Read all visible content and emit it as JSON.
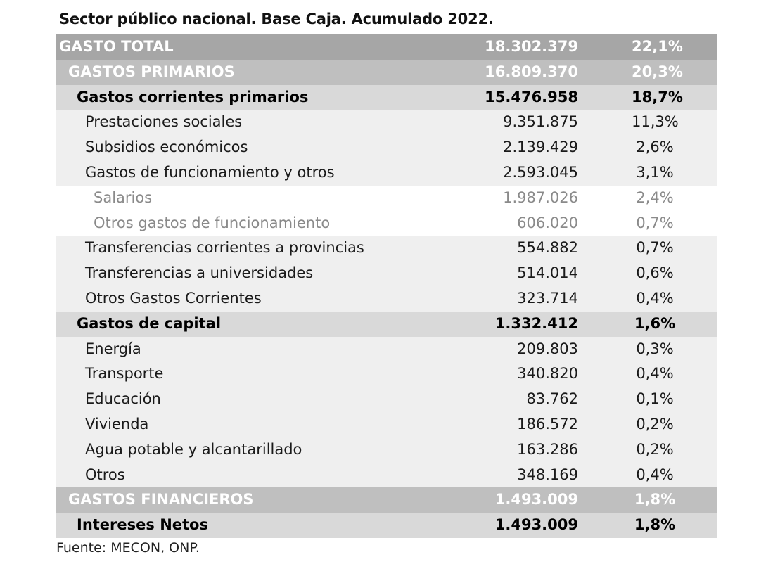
{
  "title": "Sector público nacional. Base Caja. Acumulado 2022.",
  "rows": [
    {
      "label": "GASTO TOTAL",
      "value": "18.302.379",
      "pct": "22,1%",
      "level": 0
    },
    {
      "label": "GASTOS PRIMARIOS",
      "value": "16.809.370",
      "pct": "20,3%",
      "level": 1
    },
    {
      "label": "Gastos corrientes primarios",
      "value": "15.476.958",
      "pct": "18,7%",
      "level": 2
    },
    {
      "label": "Prestaciones sociales",
      "value": "9.351.875",
      "pct": "11,3%",
      "level": 3
    },
    {
      "label": "Subsidios económicos",
      "value": "2.139.429",
      "pct": "2,6%",
      "level": 3
    },
    {
      "label": "Gastos de funcionamiento y otros",
      "value": "2.593.045",
      "pct": "3,1%",
      "level": 3
    },
    {
      "label": "Salarios",
      "value": "1.987.026",
      "pct": "2,4%",
      "level": 4
    },
    {
      "label": "Otros gastos de funcionamiento",
      "value": "606.020",
      "pct": "0,7%",
      "level": 4
    },
    {
      "label": "Transferencias corrientes a provincias",
      "value": "554.882",
      "pct": "0,7%",
      "level": 3
    },
    {
      "label": "Transferencias a universidades",
      "value": "514.014",
      "pct": "0,6%",
      "level": 3
    },
    {
      "label": "Otros Gastos Corrientes",
      "value": "323.714",
      "pct": "0,4%",
      "level": 3
    },
    {
      "label": "Gastos de capital",
      "value": "1.332.412",
      "pct": "1,6%",
      "level": 2
    },
    {
      "label": "Energía",
      "value": "209.803",
      "pct": "0,3%",
      "level": 3
    },
    {
      "label": "Transporte",
      "value": "340.820",
      "pct": "0,4%",
      "level": 3
    },
    {
      "label": "Educación",
      "value": "83.762",
      "pct": "0,1%",
      "level": 3
    },
    {
      "label": "Vivienda",
      "value": "186.572",
      "pct": "0,2%",
      "level": 3
    },
    {
      "label": "Agua potable y alcantarillado",
      "value": "163.286",
      "pct": "0,2%",
      "level": 3
    },
    {
      "label": "Otros",
      "value": "348.169",
      "pct": "0,4%",
      "level": 3
    },
    {
      "label": "GASTOS FINANCIEROS",
      "value": "1.493.009",
      "pct": "1,8%",
      "level": 1
    },
    {
      "label": "Intereses Netos",
      "value": "1.493.009",
      "pct": "1,8%",
      "level": 2
    }
  ],
  "source": "Fuente: MECON, ONP.",
  "colors": {
    "level0_bg": "#a6a6a6",
    "level1_bg": "#bfbfbf",
    "level2_bg": "#d9d9d9",
    "level3_bg": "#efefef",
    "level4_bg": "#ffffff"
  }
}
